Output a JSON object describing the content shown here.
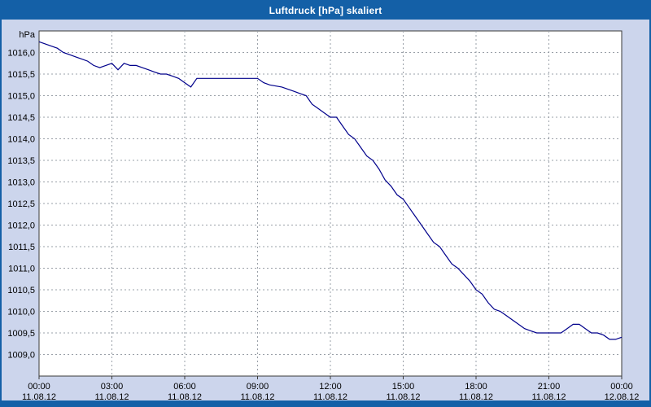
{
  "window": {
    "title": "Luftdruck [hPa] skaliert"
  },
  "chart_data": {
    "type": "line",
    "title": "Luftdruck [hPa] skaliert",
    "ylabel": "hPa",
    "xlabel": "",
    "ylim": [
      1008.5,
      1016.5
    ],
    "xlim": [
      0,
      24
    ],
    "y_tick_step": 0.5,
    "y_tick_min": 1009.0,
    "y_tick_max": 1016.0,
    "grid": true,
    "legend_position": "none",
    "line_color": "#00008b",
    "x_ticks": [
      {
        "time": "00:00",
        "date": "11.08.12",
        "hour": 0
      },
      {
        "time": "03:00",
        "date": "11.08.12",
        "hour": 3
      },
      {
        "time": "06:00",
        "date": "11.08.12",
        "hour": 6
      },
      {
        "time": "09:00",
        "date": "11.08.12",
        "hour": 9
      },
      {
        "time": "12:00",
        "date": "11.08.12",
        "hour": 12
      },
      {
        "time": "15:00",
        "date": "11.08.12",
        "hour": 15
      },
      {
        "time": "18:00",
        "date": "11.08.12",
        "hour": 18
      },
      {
        "time": "21:00",
        "date": "11.08.12",
        "hour": 21
      },
      {
        "time": "00:00",
        "date": "12.08.12",
        "hour": 24
      }
    ],
    "series": [
      {
        "name": "Luftdruck",
        "points": [
          [
            0.0,
            1016.25
          ],
          [
            0.25,
            1016.2
          ],
          [
            0.5,
            1016.15
          ],
          [
            0.75,
            1016.1
          ],
          [
            1.0,
            1016.0
          ],
          [
            1.25,
            1015.95
          ],
          [
            1.5,
            1015.9
          ],
          [
            1.75,
            1015.85
          ],
          [
            2.0,
            1015.8
          ],
          [
            2.25,
            1015.7
          ],
          [
            2.5,
            1015.65
          ],
          [
            2.75,
            1015.7
          ],
          [
            3.0,
            1015.75
          ],
          [
            3.25,
            1015.6
          ],
          [
            3.5,
            1015.75
          ],
          [
            3.75,
            1015.7
          ],
          [
            4.0,
            1015.7
          ],
          [
            4.25,
            1015.65
          ],
          [
            4.5,
            1015.6
          ],
          [
            4.75,
            1015.55
          ],
          [
            5.0,
            1015.5
          ],
          [
            5.25,
            1015.5
          ],
          [
            5.5,
            1015.45
          ],
          [
            5.75,
            1015.4
          ],
          [
            6.0,
            1015.3
          ],
          [
            6.25,
            1015.2
          ],
          [
            6.5,
            1015.4
          ],
          [
            7.0,
            1015.4
          ],
          [
            7.5,
            1015.4
          ],
          [
            8.0,
            1015.4
          ],
          [
            8.5,
            1015.4
          ],
          [
            9.0,
            1015.4
          ],
          [
            9.25,
            1015.3
          ],
          [
            9.5,
            1015.25
          ],
          [
            10.0,
            1015.2
          ],
          [
            10.5,
            1015.1
          ],
          [
            10.75,
            1015.05
          ],
          [
            11.0,
            1015.0
          ],
          [
            11.25,
            1014.8
          ],
          [
            11.5,
            1014.7
          ],
          [
            11.75,
            1014.6
          ],
          [
            12.0,
            1014.5
          ],
          [
            12.25,
            1014.5
          ],
          [
            12.5,
            1014.3
          ],
          [
            12.75,
            1014.1
          ],
          [
            13.0,
            1014.0
          ],
          [
            13.25,
            1013.8
          ],
          [
            13.5,
            1013.6
          ],
          [
            13.75,
            1013.5
          ],
          [
            14.0,
            1013.3
          ],
          [
            14.25,
            1013.05
          ],
          [
            14.5,
            1012.9
          ],
          [
            14.75,
            1012.7
          ],
          [
            15.0,
            1012.6
          ],
          [
            15.25,
            1012.4
          ],
          [
            15.5,
            1012.2
          ],
          [
            15.75,
            1012.0
          ],
          [
            16.0,
            1011.8
          ],
          [
            16.25,
            1011.6
          ],
          [
            16.5,
            1011.5
          ],
          [
            16.75,
            1011.3
          ],
          [
            17.0,
            1011.1
          ],
          [
            17.25,
            1011.0
          ],
          [
            17.5,
            1010.85
          ],
          [
            17.75,
            1010.7
          ],
          [
            18.0,
            1010.5
          ],
          [
            18.25,
            1010.4
          ],
          [
            18.5,
            1010.2
          ],
          [
            18.75,
            1010.05
          ],
          [
            19.0,
            1010.0
          ],
          [
            19.25,
            1009.9
          ],
          [
            19.5,
            1009.8
          ],
          [
            19.75,
            1009.7
          ],
          [
            20.0,
            1009.6
          ],
          [
            20.25,
            1009.55
          ],
          [
            20.5,
            1009.5
          ],
          [
            21.0,
            1009.5
          ],
          [
            21.5,
            1009.5
          ],
          [
            21.75,
            1009.6
          ],
          [
            22.0,
            1009.7
          ],
          [
            22.25,
            1009.7
          ],
          [
            22.5,
            1009.6
          ],
          [
            22.75,
            1009.5
          ],
          [
            23.0,
            1009.5
          ],
          [
            23.25,
            1009.45
          ],
          [
            23.5,
            1009.35
          ],
          [
            23.75,
            1009.35
          ],
          [
            24.0,
            1009.4
          ]
        ]
      }
    ]
  }
}
